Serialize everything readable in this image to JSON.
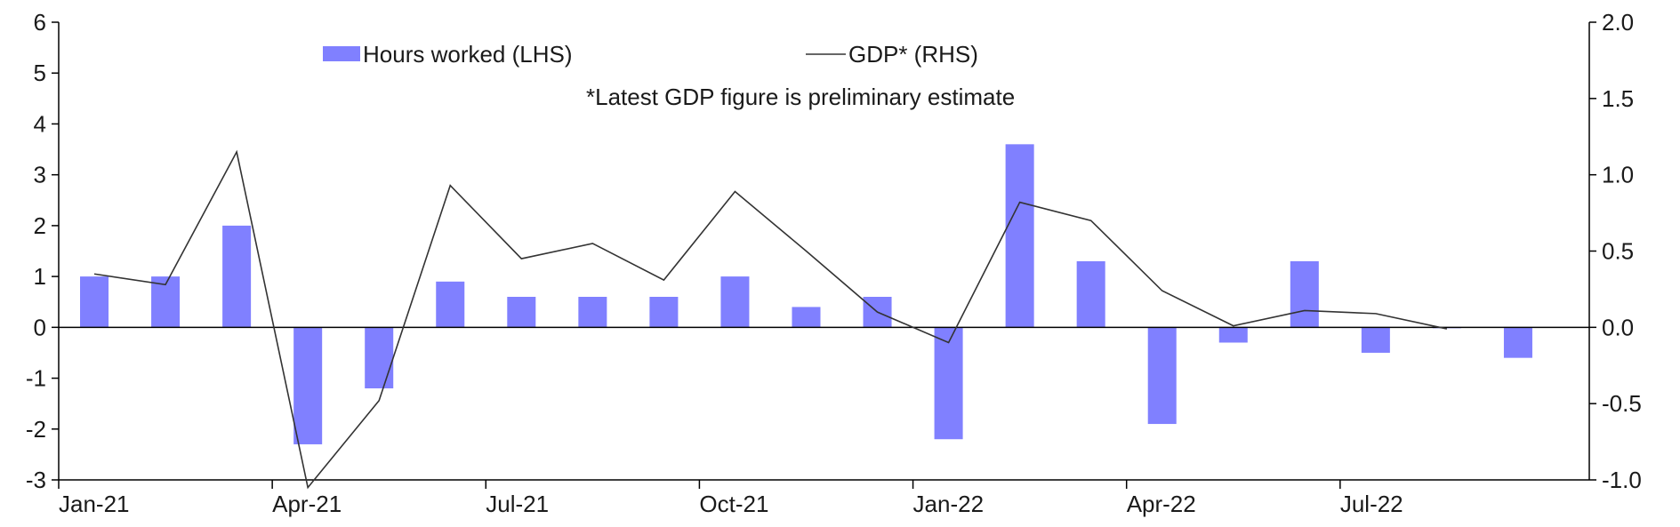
{
  "chart_data": {
    "type": "bar+line",
    "categories": [
      "Jan-21",
      "Feb-21",
      "Mar-21",
      "Apr-21",
      "May-21",
      "Jun-21",
      "Jul-21",
      "Aug-21",
      "Sep-21",
      "Oct-21",
      "Nov-21",
      "Dec-21",
      "Jan-22",
      "Feb-22",
      "Mar-22",
      "Apr-22",
      "May-22",
      "Jun-22",
      "Jul-22",
      "Aug-22",
      "Sep-22"
    ],
    "x_tick_labels": [
      "Jan-21",
      "Apr-21",
      "Jul-21",
      "Oct-21",
      "Jan-22",
      "Apr-22",
      "Jul-22"
    ],
    "series": [
      {
        "name": "Hours worked (LHS)",
        "type": "bar",
        "axis": "left",
        "color": "#8080ff",
        "values": [
          1.0,
          1.0,
          2.0,
          -2.3,
          -1.2,
          0.9,
          0.6,
          0.6,
          0.6,
          1.0,
          0.4,
          0.6,
          -2.2,
          3.6,
          1.3,
          -1.9,
          -0.3,
          1.3,
          -0.5,
          0.0,
          -0.6
        ]
      },
      {
        "name": "GDP* (RHS)",
        "type": "line",
        "axis": "right",
        "color": "#333333",
        "values": [
          0.35,
          0.28,
          1.15,
          -1.05,
          -0.48,
          0.93,
          0.45,
          0.55,
          0.31,
          0.89,
          0.5,
          0.1,
          -0.1,
          0.82,
          0.7,
          0.24,
          0.01,
          0.11,
          0.09,
          -0.01,
          null
        ]
      }
    ],
    "left_axis": {
      "ylim": [
        -3,
        6
      ],
      "ticks": [
        "6",
        "5",
        "4",
        "3",
        "2",
        "1",
        "0",
        "-1",
        "-2",
        "-3"
      ],
      "tick_values": [
        6,
        5,
        4,
        3,
        2,
        1,
        0,
        -1,
        -2,
        -3
      ]
    },
    "right_axis": {
      "ylim": [
        -1.0,
        2.0
      ],
      "ticks": [
        "2.0",
        "1.5",
        "1.0",
        "0.5",
        "0.0",
        "-0.5",
        "-1.0"
      ],
      "tick_values": [
        2.0,
        1.5,
        1.0,
        0.5,
        0.0,
        -0.5,
        -1.0
      ]
    },
    "legend": {
      "placement": "top-center",
      "bar_label": "Hours worked (LHS)",
      "line_label": "GDP* (RHS)"
    },
    "annotation": "*Latest GDP figure is preliminary estimate",
    "grid": false
  }
}
